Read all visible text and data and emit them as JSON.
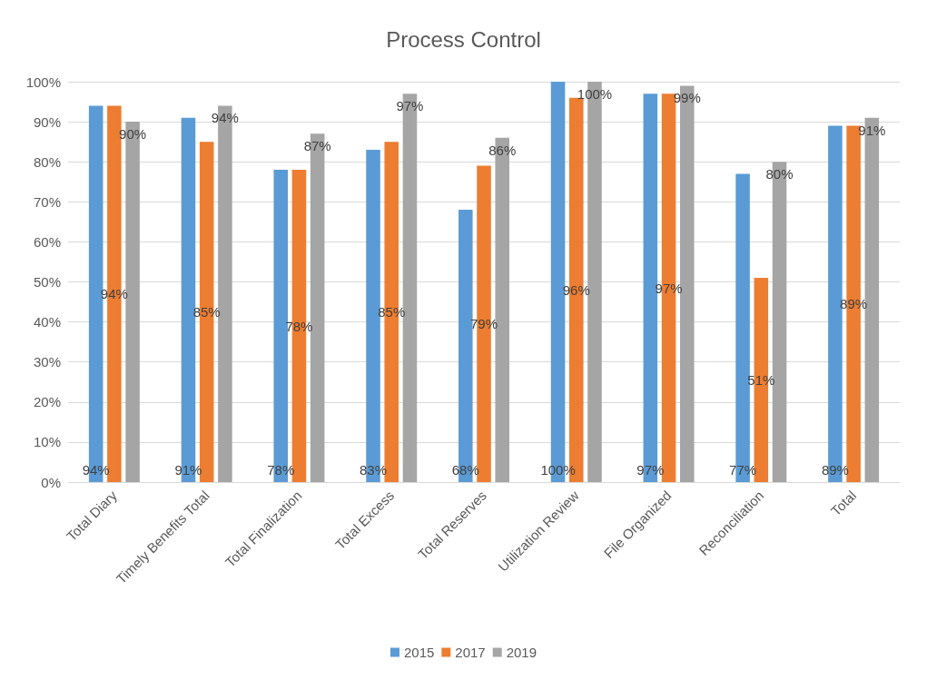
{
  "chart_data": {
    "type": "bar",
    "title": "Process Control",
    "categories": [
      "Total Diary",
      "Timely Benefits Total",
      "Total Finalization",
      "Total Excess",
      "Total Reserves",
      "Utilization Review",
      "File Organized",
      "Reconciliation",
      "Total"
    ],
    "series": [
      {
        "name": "2015",
        "color": "#5b9bd5",
        "values": [
          94,
          91,
          78,
          83,
          68,
          100,
          97,
          77,
          89
        ]
      },
      {
        "name": "2017",
        "color": "#ed7d31",
        "values": [
          94,
          85,
          78,
          85,
          79,
          96,
          97,
          51,
          89
        ]
      },
      {
        "name": "2019",
        "color": "#a5a5a5",
        "values": [
          90,
          94,
          87,
          97,
          86,
          100,
          99,
          80,
          91
        ]
      }
    ],
    "value_labels": [
      [
        "94%",
        "91%",
        "78%",
        "83%",
        "68%",
        "100%",
        "97%",
        "77%",
        "89%"
      ],
      [
        "94%",
        "85%",
        "78%",
        "85%",
        "79%",
        "96%",
        "97%",
        "51%",
        "89%"
      ],
      [
        "90%",
        "94%",
        "87%",
        "97%",
        "86%",
        "100%",
        "99%",
        "80%",
        "91%"
      ]
    ],
    "ylim": [
      0,
      100
    ],
    "yticks": [
      {
        "value": 0,
        "label": "0%"
      },
      {
        "value": 10,
        "label": "10%"
      },
      {
        "value": 20,
        "label": "20%"
      },
      {
        "value": 30,
        "label": "30%"
      },
      {
        "value": 40,
        "label": "40%"
      },
      {
        "value": 50,
        "label": "50%"
      },
      {
        "value": 60,
        "label": "60%"
      },
      {
        "value": 70,
        "label": "70%"
      },
      {
        "value": 80,
        "label": "80%"
      },
      {
        "value": 90,
        "label": "90%"
      },
      {
        "value": 100,
        "label": "100%"
      }
    ],
    "grid": "y",
    "legend": "bottom"
  }
}
